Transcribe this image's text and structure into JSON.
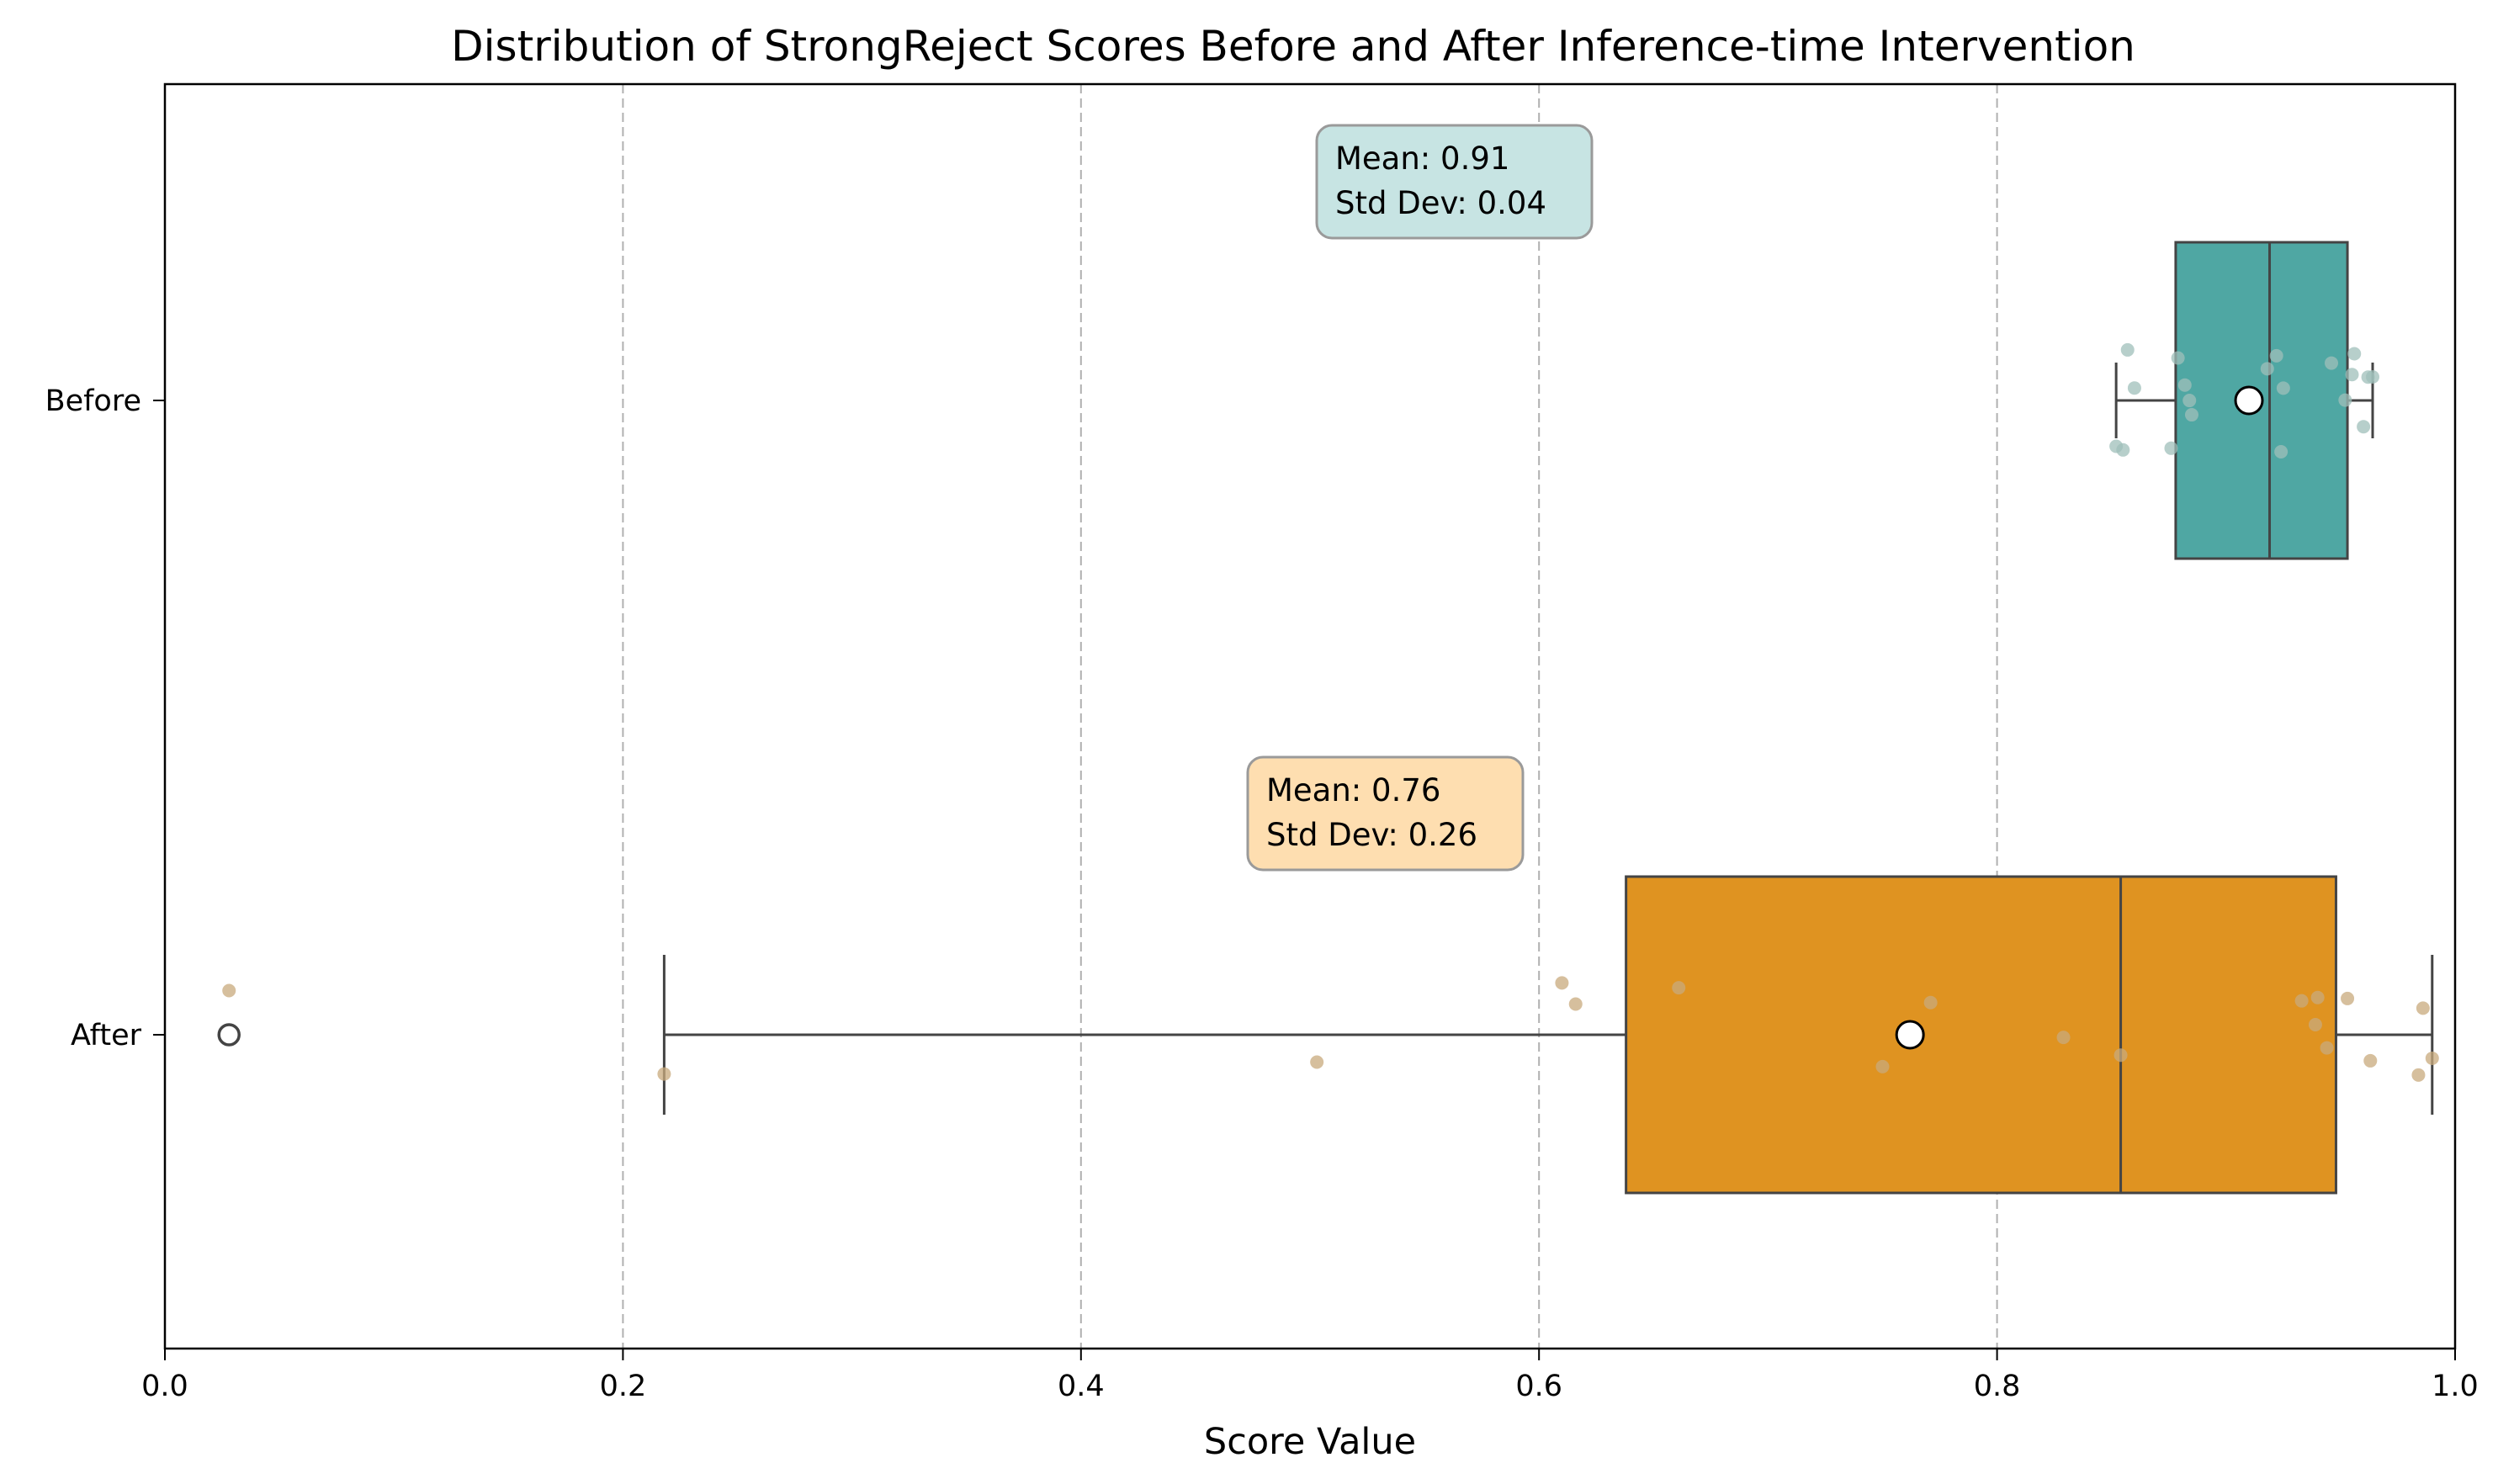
{
  "chart_data": {
    "type": "box",
    "title": "Distribution of StrongReject Scores Before and After Inference-time Intervention",
    "xlabel": "Score Value",
    "ylabel": "",
    "xlim": [
      0.0,
      1.0
    ],
    "xticks": [
      "0.0",
      "0.2",
      "0.4",
      "0.6",
      "0.8",
      "1.0"
    ],
    "grid": "x-dashed",
    "categories": [
      "Before",
      "After"
    ],
    "series": [
      {
        "category": "Before",
        "color": "#4fa7a3",
        "point_color": "#9fbfba",
        "q1": 0.878,
        "median": 0.919,
        "q3": 0.953,
        "whisker_low": 0.852,
        "whisker_high": 0.964,
        "mean": 0.91,
        "outliers": [],
        "points": [
          0.852,
          0.855,
          0.857,
          0.86,
          0.876,
          0.879,
          0.882,
          0.884,
          0.885,
          0.918,
          0.922,
          0.924,
          0.925,
          0.946,
          0.952,
          0.955,
          0.956,
          0.96,
          0.962,
          0.964
        ],
        "annotation": {
          "mean_label": "Mean: 0.91",
          "std_label": "Std Dev: 0.04"
        }
      },
      {
        "category": "After",
        "color": "#df9321",
        "point_color": "#c8a97c",
        "q1": 0.638,
        "median": 0.854,
        "q3": 0.948,
        "whisker_low": 0.218,
        "whisker_high": 0.99,
        "mean": 0.762,
        "outliers": [
          0.028
        ],
        "points": [
          0.028,
          0.218,
          0.503,
          0.61,
          0.616,
          0.661,
          0.75,
          0.771,
          0.829,
          0.854,
          0.933,
          0.939,
          0.94,
          0.944,
          0.953,
          0.963,
          0.984,
          0.986,
          0.99
        ],
        "annotation": {
          "mean_label": "Mean: 0.76",
          "std_label": "Std Dev: 0.26"
        }
      }
    ]
  }
}
